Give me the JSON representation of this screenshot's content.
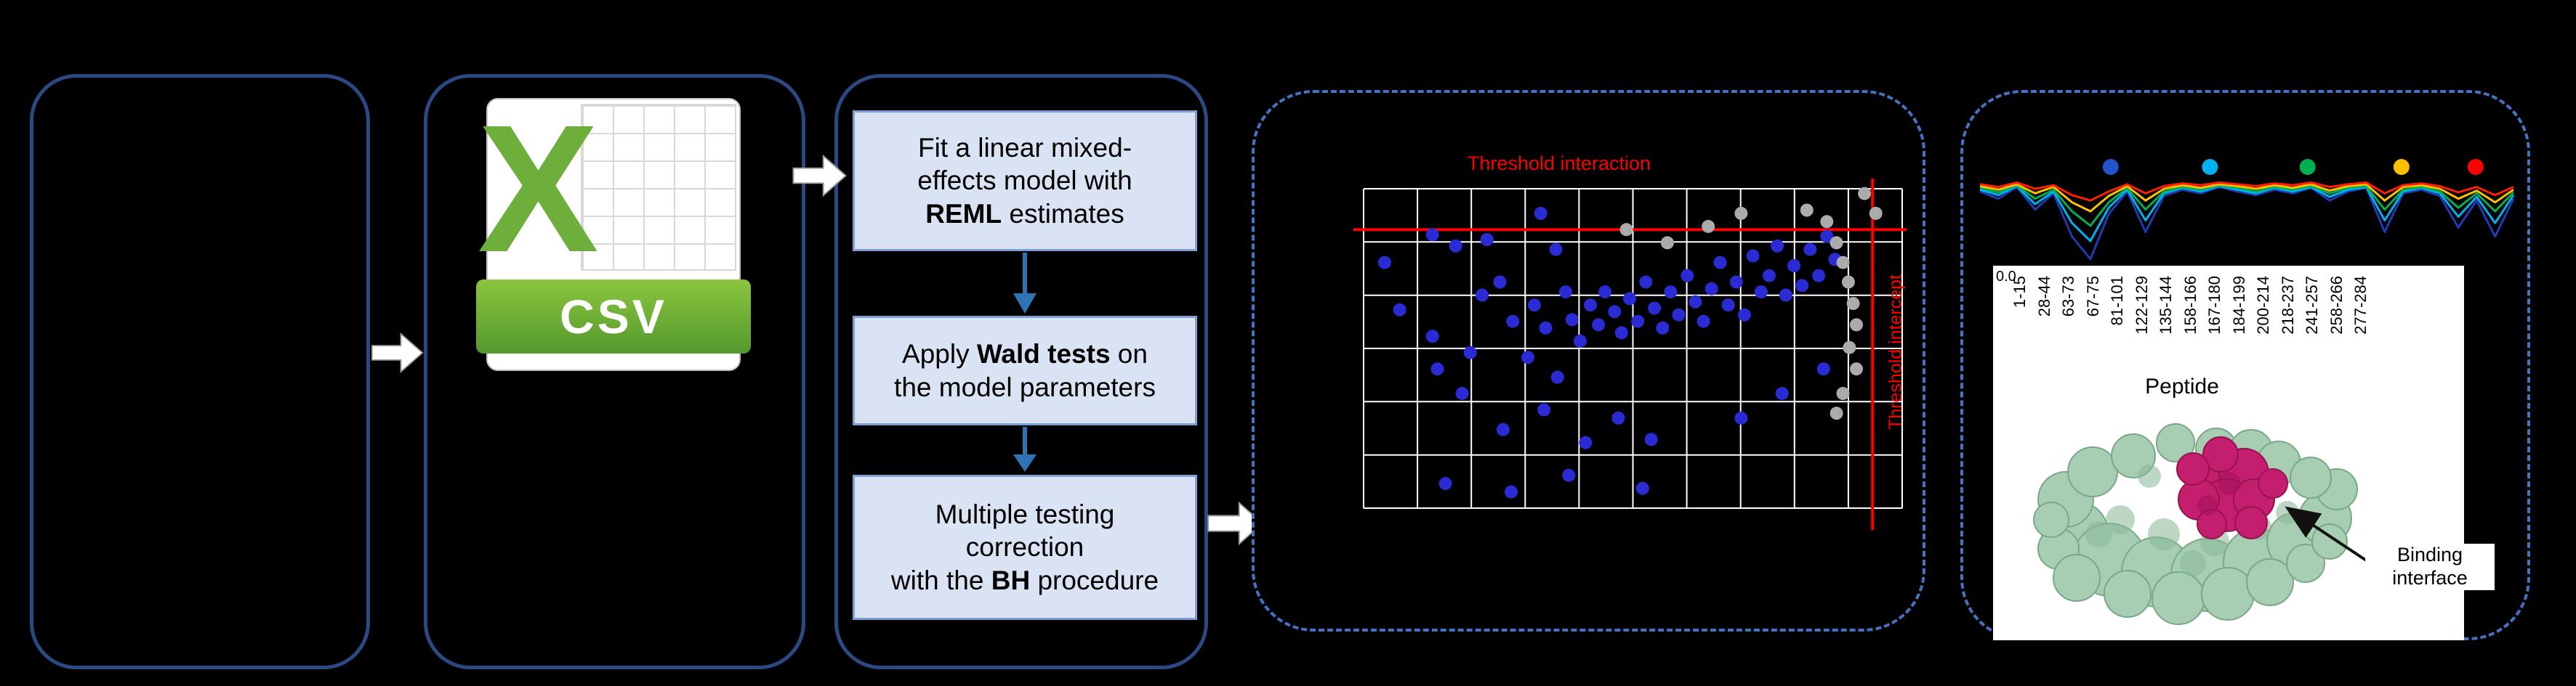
{
  "colors": {
    "panel_border": "#2B4A85",
    "dashed_border": "#4472C4",
    "step_box_fill": "#DAE3F3",
    "step_box_border": "#7F9FD4",
    "arrow_blue": "#2E74B5",
    "threshold_red": "#FF0000",
    "csv_green": "#6EAF3C"
  },
  "figure": {
    "csv_icon": {
      "letter": "X",
      "banner_label": "CSV"
    },
    "flow_steps": [
      {
        "pre": "Fit a linear mixed-\neffects model with\n",
        "bold": "REML",
        "post": " estimates"
      },
      {
        "pre": "Apply ",
        "bold": "Wald tests",
        "post": " on\nthe model parameters"
      },
      {
        "pre": "Multiple testing\ncorrection\nwith the ",
        "bold": "BH",
        "post": " procedure"
      }
    ]
  },
  "chart_data": [
    {
      "id": "threshold-scatter",
      "type": "scatter",
      "title": "Threshold interaction",
      "right_label": "Threshold intercept",
      "grid": {
        "cols": 10,
        "rows": 6,
        "color": "#FFFFFF"
      },
      "thresholds": {
        "y_pct": 12.8,
        "x_pct": 94.5,
        "color": "#FF0000"
      },
      "series": [
        {
          "name": "significant-peptides",
          "color": "#2B2BD5",
          "points_pct": [
            [
              3.9,
              23.1
            ],
            [
              6.7,
              37.9
            ],
            [
              12.8,
              14.4
            ],
            [
              17.1,
              17.9
            ],
            [
              22.9,
              15.9
            ],
            [
              32.9,
              7.7
            ],
            [
              35.7,
              19.0
            ],
            [
              22.0,
              33.3
            ],
            [
              25.3,
              29.2
            ],
            [
              27.7,
              41.5
            ],
            [
              31.7,
              36.4
            ],
            [
              33.8,
              43.6
            ],
            [
              37.5,
              32.3
            ],
            [
              38.7,
              41.0
            ],
            [
              40.2,
              47.7
            ],
            [
              42.1,
              36.4
            ],
            [
              43.6,
              42.6
            ],
            [
              44.8,
              32.3
            ],
            [
              46.6,
              38.5
            ],
            [
              47.9,
              45.1
            ],
            [
              49.4,
              34.4
            ],
            [
              50.9,
              41.5
            ],
            [
              52.4,
              29.2
            ],
            [
              54.0,
              37.4
            ],
            [
              55.5,
              43.6
            ],
            [
              57.0,
              32.3
            ],
            [
              58.5,
              39.5
            ],
            [
              60.1,
              27.2
            ],
            [
              61.6,
              35.4
            ],
            [
              63.1,
              41.5
            ],
            [
              64.6,
              31.3
            ],
            [
              66.2,
              23.1
            ],
            [
              67.7,
              36.4
            ],
            [
              69.2,
              29.2
            ],
            [
              70.7,
              39.5
            ],
            [
              72.3,
              21.0
            ],
            [
              73.8,
              32.3
            ],
            [
              75.3,
              27.2
            ],
            [
              76.8,
              17.9
            ],
            [
              78.4,
              33.3
            ],
            [
              79.9,
              24.1
            ],
            [
              81.4,
              30.3
            ],
            [
              82.9,
              19.0
            ],
            [
              84.5,
              27.2
            ],
            [
              86.0,
              14.9
            ],
            [
              87.5,
              22.1
            ],
            [
              13.7,
              56.4
            ],
            [
              18.3,
              64.1
            ],
            [
              25.9,
              75.4
            ],
            [
              33.5,
              69.2
            ],
            [
              41.2,
              79.5
            ],
            [
              47.3,
              71.8
            ],
            [
              53.4,
              78.5
            ],
            [
              15.2,
              92.3
            ],
            [
              27.4,
              94.9
            ],
            [
              38.1,
              89.7
            ],
            [
              51.8,
              93.8
            ],
            [
              70.1,
              71.8
            ],
            [
              77.7,
              64.1
            ],
            [
              85.4,
              56.4
            ],
            [
              30.5,
              52.8
            ],
            [
              36.0,
              59.0
            ],
            [
              12.8,
              46.2
            ],
            [
              19.8,
              51.3
            ]
          ]
        },
        {
          "name": "filtered-peptides",
          "color": "#ABABAB",
          "points_pct": [
            [
              82.3,
              6.7
            ],
            [
              86.0,
              10.3
            ],
            [
              87.8,
              16.9
            ],
            [
              89.0,
              23.1
            ],
            [
              90.0,
              29.2
            ],
            [
              90.9,
              35.9
            ],
            [
              91.5,
              42.6
            ],
            [
              90.2,
              49.7
            ],
            [
              91.5,
              56.4
            ],
            [
              89.0,
              64.1
            ],
            [
              87.8,
              70.3
            ],
            [
              56.4,
              16.9
            ],
            [
              64.0,
              11.8
            ],
            [
              70.1,
              7.7
            ],
            [
              48.8,
              12.8
            ],
            [
              95.1,
              7.7
            ],
            [
              93.0,
              1.5
            ]
          ]
        }
      ]
    },
    {
      "id": "peptide-uptake-lines",
      "type": "line",
      "x_count": 30,
      "y_axis_tick": "0.0",
      "series": [
        {
          "name": "series-red",
          "color": "#FF1E00",
          "values": [
            0.88,
            0.85,
            0.9,
            0.83,
            0.87,
            0.76,
            0.7,
            0.8,
            0.88,
            0.78,
            0.86,
            0.89,
            0.87,
            0.9,
            0.88,
            0.86,
            0.89,
            0.87,
            0.9,
            0.85,
            0.88,
            0.9,
            0.78,
            0.87,
            0.89,
            0.86,
            0.79,
            0.85,
            0.76,
            0.85
          ]
        },
        {
          "name": "series-orange",
          "color": "#FFC000",
          "values": [
            0.86,
            0.82,
            0.88,
            0.78,
            0.85,
            0.68,
            0.58,
            0.75,
            0.86,
            0.7,
            0.83,
            0.87,
            0.84,
            0.88,
            0.86,
            0.83,
            0.87,
            0.84,
            0.88,
            0.81,
            0.86,
            0.88,
            0.7,
            0.85,
            0.87,
            0.83,
            0.72,
            0.81,
            0.68,
            0.82
          ]
        },
        {
          "name": "series-green",
          "color": "#00B050",
          "values": [
            0.84,
            0.79,
            0.87,
            0.72,
            0.82,
            0.58,
            0.42,
            0.68,
            0.84,
            0.6,
            0.8,
            0.85,
            0.82,
            0.87,
            0.84,
            0.8,
            0.85,
            0.82,
            0.86,
            0.78,
            0.84,
            0.86,
            0.6,
            0.82,
            0.85,
            0.8,
            0.62,
            0.78,
            0.58,
            0.79
          ]
        },
        {
          "name": "series-cyan",
          "color": "#00B0F0",
          "values": [
            0.82,
            0.76,
            0.86,
            0.66,
            0.8,
            0.45,
            0.25,
            0.62,
            0.82,
            0.48,
            0.78,
            0.84,
            0.8,
            0.86,
            0.82,
            0.78,
            0.84,
            0.8,
            0.85,
            0.74,
            0.82,
            0.85,
            0.48,
            0.8,
            0.84,
            0.78,
            0.52,
            0.74,
            0.45,
            0.76
          ]
        },
        {
          "name": "series-blue",
          "color": "#1F3BB3",
          "values": [
            0.8,
            0.72,
            0.85,
            0.6,
            0.78,
            0.3,
            0.05,
            0.55,
            0.8,
            0.35,
            0.75,
            0.82,
            0.78,
            0.85,
            0.8,
            0.76,
            0.82,
            0.78,
            0.84,
            0.7,
            0.8,
            0.84,
            0.35,
            0.78,
            0.82,
            0.75,
            0.4,
            0.7,
            0.3,
            0.72
          ]
        }
      ],
      "legend_dots": [
        {
          "color": "#2255CC",
          "x_pct": 24.5
        },
        {
          "color": "#00B0F0",
          "x_pct": 43.1
        },
        {
          "color": "#00B050",
          "x_pct": 61.4
        },
        {
          "color": "#FFC000",
          "x_pct": 79.0
        },
        {
          "color": "#FF0000",
          "x_pct": 92.9
        }
      ],
      "x_axis": {
        "title": "Peptide",
        "labels": [
          "1-15",
          "28-44",
          "63-73",
          "67-75",
          "81-101",
          "122-129",
          "135-144",
          "158-166",
          "167-180",
          "184-199",
          "200-214",
          "218-237",
          "241-257",
          "258-266",
          "277-284"
        ]
      }
    }
  ],
  "protein_panel": {
    "caption": "Binding interface"
  }
}
